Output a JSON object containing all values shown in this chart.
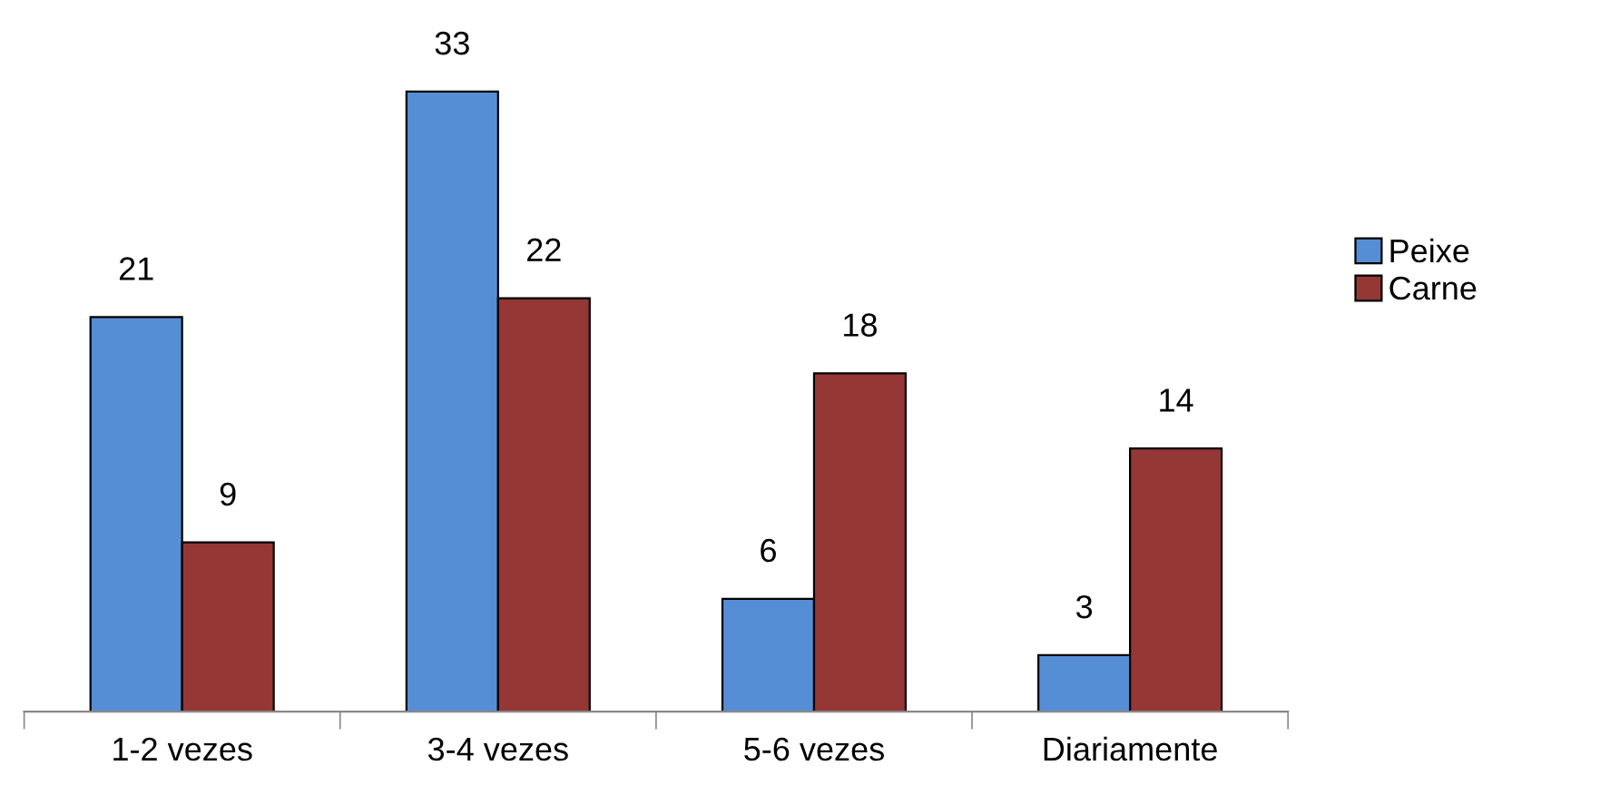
{
  "chart_data": {
    "type": "bar",
    "categories": [
      "1-2 vezes",
      "3-4 vezes",
      "5-6 vezes",
      "Diariamente"
    ],
    "series": [
      {
        "name": "Peixe",
        "color": "#558ed5",
        "values": [
          21,
          33,
          6,
          3
        ]
      },
      {
        "name": "Carne",
        "color": "#953735",
        "values": [
          9,
          22,
          18,
          14
        ]
      }
    ],
    "data_labels": true,
    "legend": "right",
    "grid": false
  }
}
